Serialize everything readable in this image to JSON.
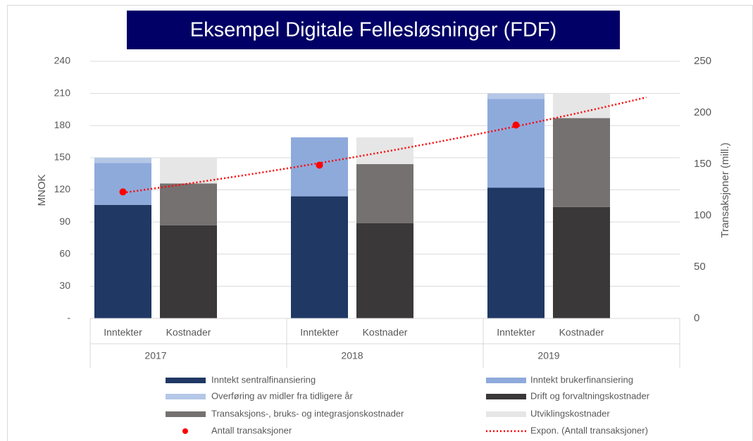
{
  "chart_data": {
    "type": "stacked-bar",
    "title": "Eksempel Digitale Fellesløsninger (FDF)",
    "y_label": "MNOK",
    "y2_label": "Transaksjoner (mill.)",
    "groups": [
      "2017",
      "2018",
      "2019"
    ],
    "categories": [
      "Inntekter",
      "Kostnader",
      "Inntekter",
      "Kostnader",
      "Inntekter",
      "Kostnader"
    ],
    "series": [
      {
        "name": "Inntekt sentralfinansiering",
        "color": "#1f3864",
        "values": [
          106,
          null,
          114,
          null,
          122,
          null
        ]
      },
      {
        "name": "Inntekt brukerfinansiering",
        "color": "#8eaadb",
        "values": [
          39,
          null,
          55,
          null,
          83,
          null
        ]
      },
      {
        "name": "Overføring av midler fra tidligere år",
        "color": "#b4c7e7",
        "values": [
          5,
          null,
          0,
          null,
          5,
          null
        ]
      },
      {
        "name": "Drift og forvaltningskostnader",
        "color": "#3a3838",
        "values": [
          null,
          87,
          null,
          89,
          null,
          104
        ]
      },
      {
        "name": "Transaksjons-, bruks- og integrasjonskostnader",
        "color": "#767171",
        "values": [
          null,
          39,
          null,
          55,
          null,
          83
        ]
      },
      {
        "name": "Utviklingskostnader",
        "color": "#e7e6e6",
        "values": [
          null,
          24,
          null,
          25,
          null,
          23
        ]
      }
    ],
    "scatter": {
      "name": "Antall transaksjoner",
      "color": "#ff0000",
      "axis": "y2",
      "values": [
        123,
        null,
        149,
        null,
        188,
        null
      ]
    },
    "trendline": {
      "name": "Expon. (Antall transaksjoner)",
      "color": "#ff0000",
      "type": "exponential"
    },
    "ylim": [
      0,
      240
    ],
    "yticks": [
      {
        "value": 0,
        "label": "-"
      },
      30,
      60,
      90,
      120,
      150,
      180,
      210,
      240
    ],
    "y2lim": [
      0,
      250
    ],
    "y2ticks": [
      0,
      50,
      100,
      150,
      200,
      250
    ],
    "grid": true
  }
}
